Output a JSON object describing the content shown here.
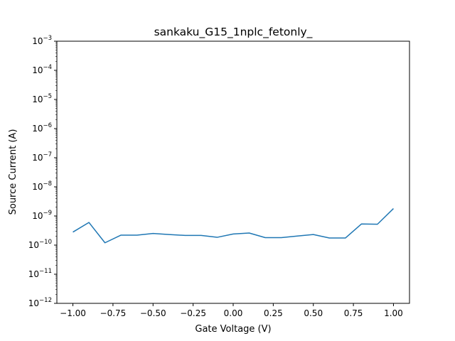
{
  "chart_data": {
    "type": "line",
    "title": "sankaku_G15_1nplc_fetonly_",
    "xlabel": "Gate Voltage (V)",
    "ylabel": "Source Current (A)",
    "xlim": [
      -1.1,
      1.1
    ],
    "ylim": [
      1e-12,
      0.001
    ],
    "yscale": "log",
    "grid": false,
    "x_ticks": [
      "−1.00",
      "−0.75",
      "−0.50",
      "−0.25",
      "0.00",
      "0.25",
      "0.50",
      "0.75",
      "1.00"
    ],
    "y_tick_exponents": [
      "−12",
      "−11",
      "−10",
      "−9",
      "−8",
      "−7",
      "−6",
      "−5",
      "−4",
      "−3"
    ],
    "series": [
      {
        "color": "#1f77b4",
        "x": [
          -1.0,
          -0.9,
          -0.8,
          -0.7,
          -0.6,
          -0.5,
          -0.4,
          -0.3,
          -0.2,
          -0.1,
          0.0,
          0.1,
          0.2,
          0.3,
          0.4,
          0.5,
          0.6,
          0.7,
          0.8,
          0.9,
          1.0
        ],
        "y": [
          2.8e-10,
          6e-10,
          1.2e-10,
          2.2e-10,
          2.2e-10,
          2.5e-10,
          2.3e-10,
          2.15e-10,
          2.15e-10,
          1.85e-10,
          2.4e-10,
          2.6e-10,
          1.8e-10,
          1.8e-10,
          2.05e-10,
          2.3e-10,
          1.75e-10,
          1.75e-10,
          5.3e-10,
          5.2e-10,
          1.8e-09
        ]
      }
    ]
  }
}
